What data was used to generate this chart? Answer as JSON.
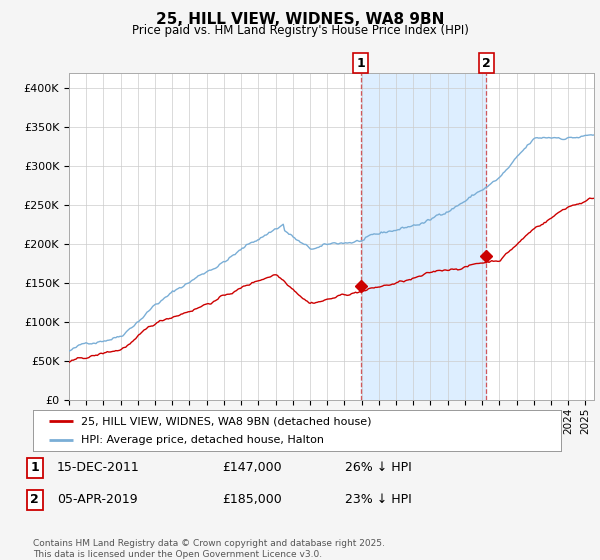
{
  "title": "25, HILL VIEW, WIDNES, WA8 9BN",
  "subtitle": "Price paid vs. HM Land Registry's House Price Index (HPI)",
  "ylim": [
    0,
    420000
  ],
  "yticks": [
    0,
    50000,
    100000,
    150000,
    200000,
    250000,
    300000,
    350000,
    400000
  ],
  "xlim_start": 1995,
  "xlim_end": 2025.5,
  "legend_label_red": "25, HILL VIEW, WIDNES, WA8 9BN (detached house)",
  "legend_label_blue": "HPI: Average price, detached house, Halton",
  "marker1_year": 2011.958,
  "marker1_price": 147000,
  "marker2_year": 2019.25,
  "marker2_price": 185000,
  "marker1_date": "15-DEC-2011",
  "marker2_date": "05-APR-2019",
  "marker1_hpi_diff": "26% ↓ HPI",
  "marker2_hpi_diff": "23% ↓ HPI",
  "footnote": "Contains HM Land Registry data © Crown copyright and database right 2025.\nThis data is licensed under the Open Government Licence v3.0.",
  "red_color": "#cc0000",
  "blue_color": "#7aaed6",
  "shade_color": "#ddeeff",
  "vline_color": "#cc3333",
  "grid_color": "#cccccc",
  "plot_bg": "#ffffff",
  "fig_bg": "#f5f5f5"
}
